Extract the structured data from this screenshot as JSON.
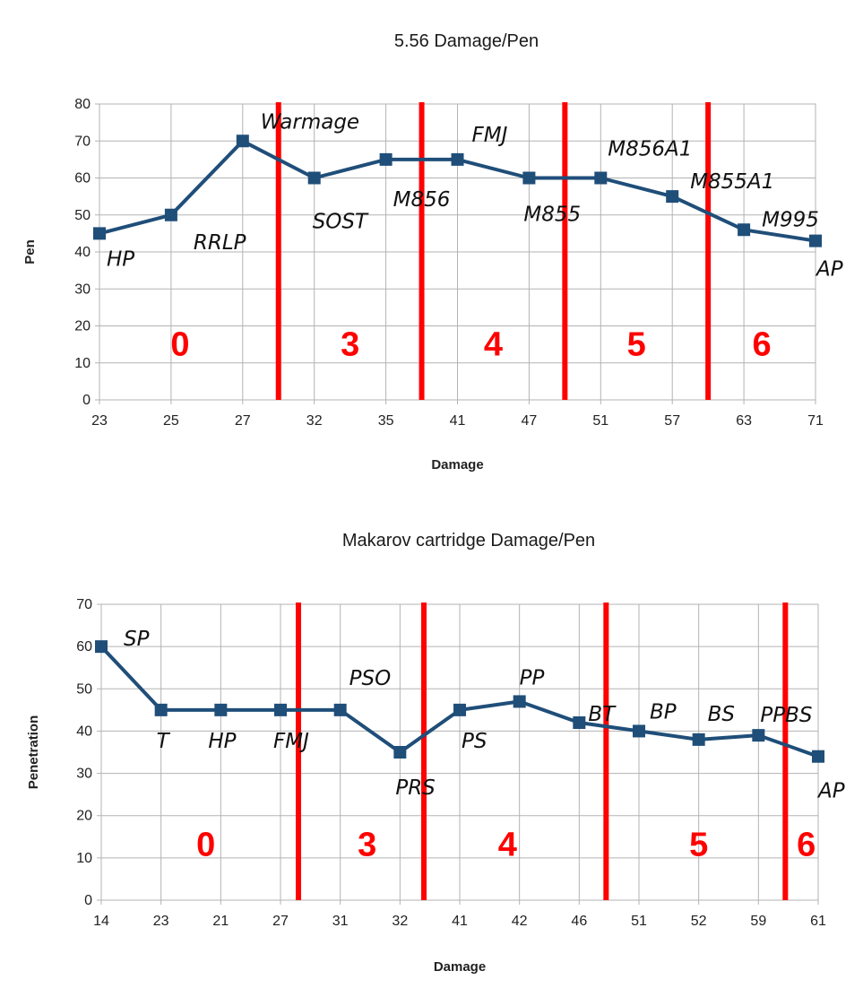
{
  "chart_data": [
    {
      "type": "line",
      "title": "5.56 Damage/Pen",
      "xlabel": "Damage",
      "ylabel": "Pen",
      "ylim": [
        0,
        80
      ],
      "ytick_step": 10,
      "grid": true,
      "categories": [
        "23",
        "25",
        "27",
        "32",
        "35",
        "41",
        "47",
        "51",
        "57",
        "63",
        "71"
      ],
      "series": [
        {
          "values": [
            45,
            50,
            70,
            60,
            65,
            65,
            60,
            60,
            55,
            46,
            43
          ]
        }
      ],
      "annotations": [
        "HP",
        "RRLP",
        "Warmage",
        "SOST",
        "M856",
        "FMJ",
        "M855",
        "M856A1",
        "M855A1",
        "M995",
        "AP"
      ],
      "divider_positions": [
        2.5,
        4.5,
        6.5,
        8.5
      ],
      "zones": [
        {
          "label": "0",
          "center": 1.125
        },
        {
          "label": "3",
          "center": 3.5
        },
        {
          "label": "4",
          "center": 5.5
        },
        {
          "label": "5",
          "center": 7.5
        },
        {
          "label": "6",
          "center": 9.25
        }
      ],
      "line_color": "#1f4e79",
      "divider_color": "#ff0000"
    },
    {
      "type": "line",
      "title": "Makarov cartridge Damage/Pen",
      "xlabel": "Damage",
      "ylabel": "Penetration",
      "ylim": [
        0,
        70
      ],
      "ytick_step": 10,
      "grid": true,
      "categories": [
        "14",
        "23",
        "21",
        "27",
        "31",
        "32",
        "41",
        "42",
        "46",
        "51",
        "52",
        "59",
        "61"
      ],
      "series": [
        {
          "values": [
            60,
            45,
            45,
            45,
            45,
            35,
            45,
            47,
            42,
            40,
            38,
            39,
            34
          ]
        }
      ],
      "annotations": [
        "SP",
        "T",
        "HP",
        "FMJ",
        "PSO",
        "PRS",
        "PS",
        "PP",
        "BT",
        "BP",
        "BS",
        "PPBS",
        "AP"
      ],
      "divider_positions": [
        3.3,
        5.4,
        8.45,
        11.45
      ],
      "zones": [
        {
          "label": "0",
          "center": 1.75
        },
        {
          "label": "3",
          "center": 4.45
        },
        {
          "label": "4",
          "center": 6.8
        },
        {
          "label": "5",
          "center": 10.0
        },
        {
          "label": "6",
          "center": 11.8
        }
      ],
      "line_color": "#1f4e79",
      "divider_color": "#ff0000"
    }
  ]
}
